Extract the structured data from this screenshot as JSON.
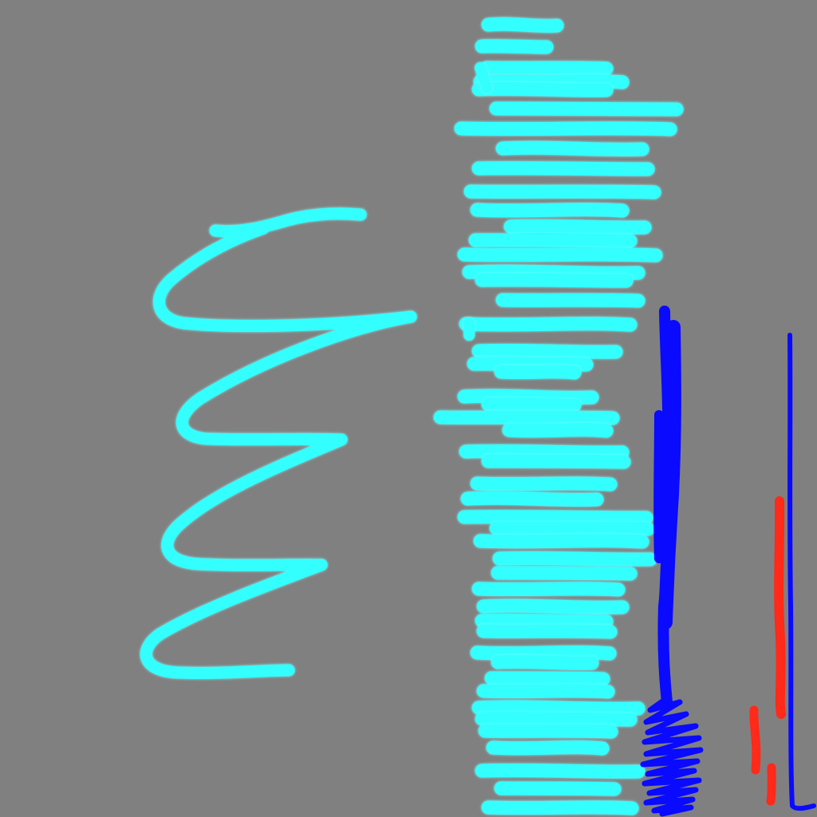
{
  "canvas": {
    "background": "#808080"
  },
  "colors": {
    "cyan": "#33ffff",
    "blue": "#0a0aff",
    "red": "#ff2a1a"
  },
  "strokes": [
    {
      "name": "cyan-zigzag-scribble",
      "color": "cyan"
    },
    {
      "name": "cyan-horizontal-hatching",
      "color": "cyan"
    },
    {
      "name": "blue-thick-vertical-line",
      "color": "blue"
    },
    {
      "name": "blue-bottom-scribble",
      "color": "blue"
    },
    {
      "name": "blue-thin-vertical-line",
      "color": "blue"
    },
    {
      "name": "red-vertical-marks",
      "color": "red"
    }
  ]
}
